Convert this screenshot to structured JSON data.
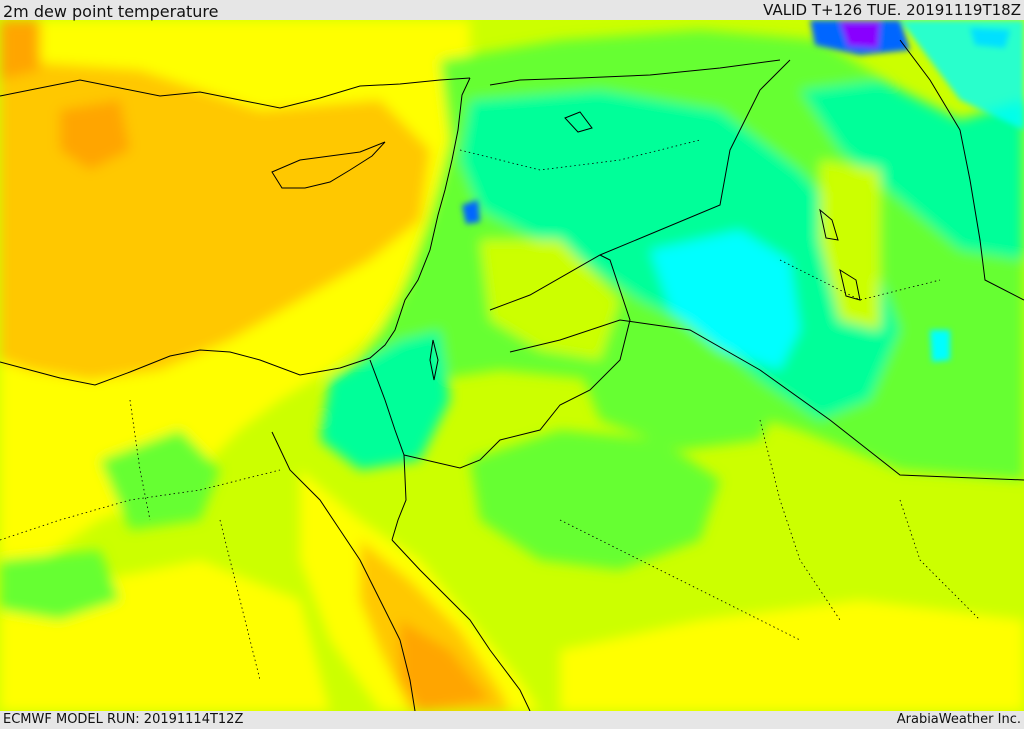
{
  "header": {
    "title": "2m dew point temperature",
    "valid_time": "VALID T+126 TUE. 20191119T18Z"
  },
  "footer": {
    "model_run": "ECMWF MODEL RUN: 20191114T12Z",
    "credit": "ArabiaWeather Inc."
  },
  "palette": {
    "orange": "#ffa500",
    "light_orange": "#ffc800",
    "yellow": "#ffff00",
    "yellow_green": "#ccff00",
    "green": "#66ff33",
    "bright_green": "#00ff66",
    "teal": "#00ff99",
    "cyan": "#00ffff",
    "blue": "#0066ff",
    "violet": "#8800ff",
    "border_line": "#000000"
  }
}
